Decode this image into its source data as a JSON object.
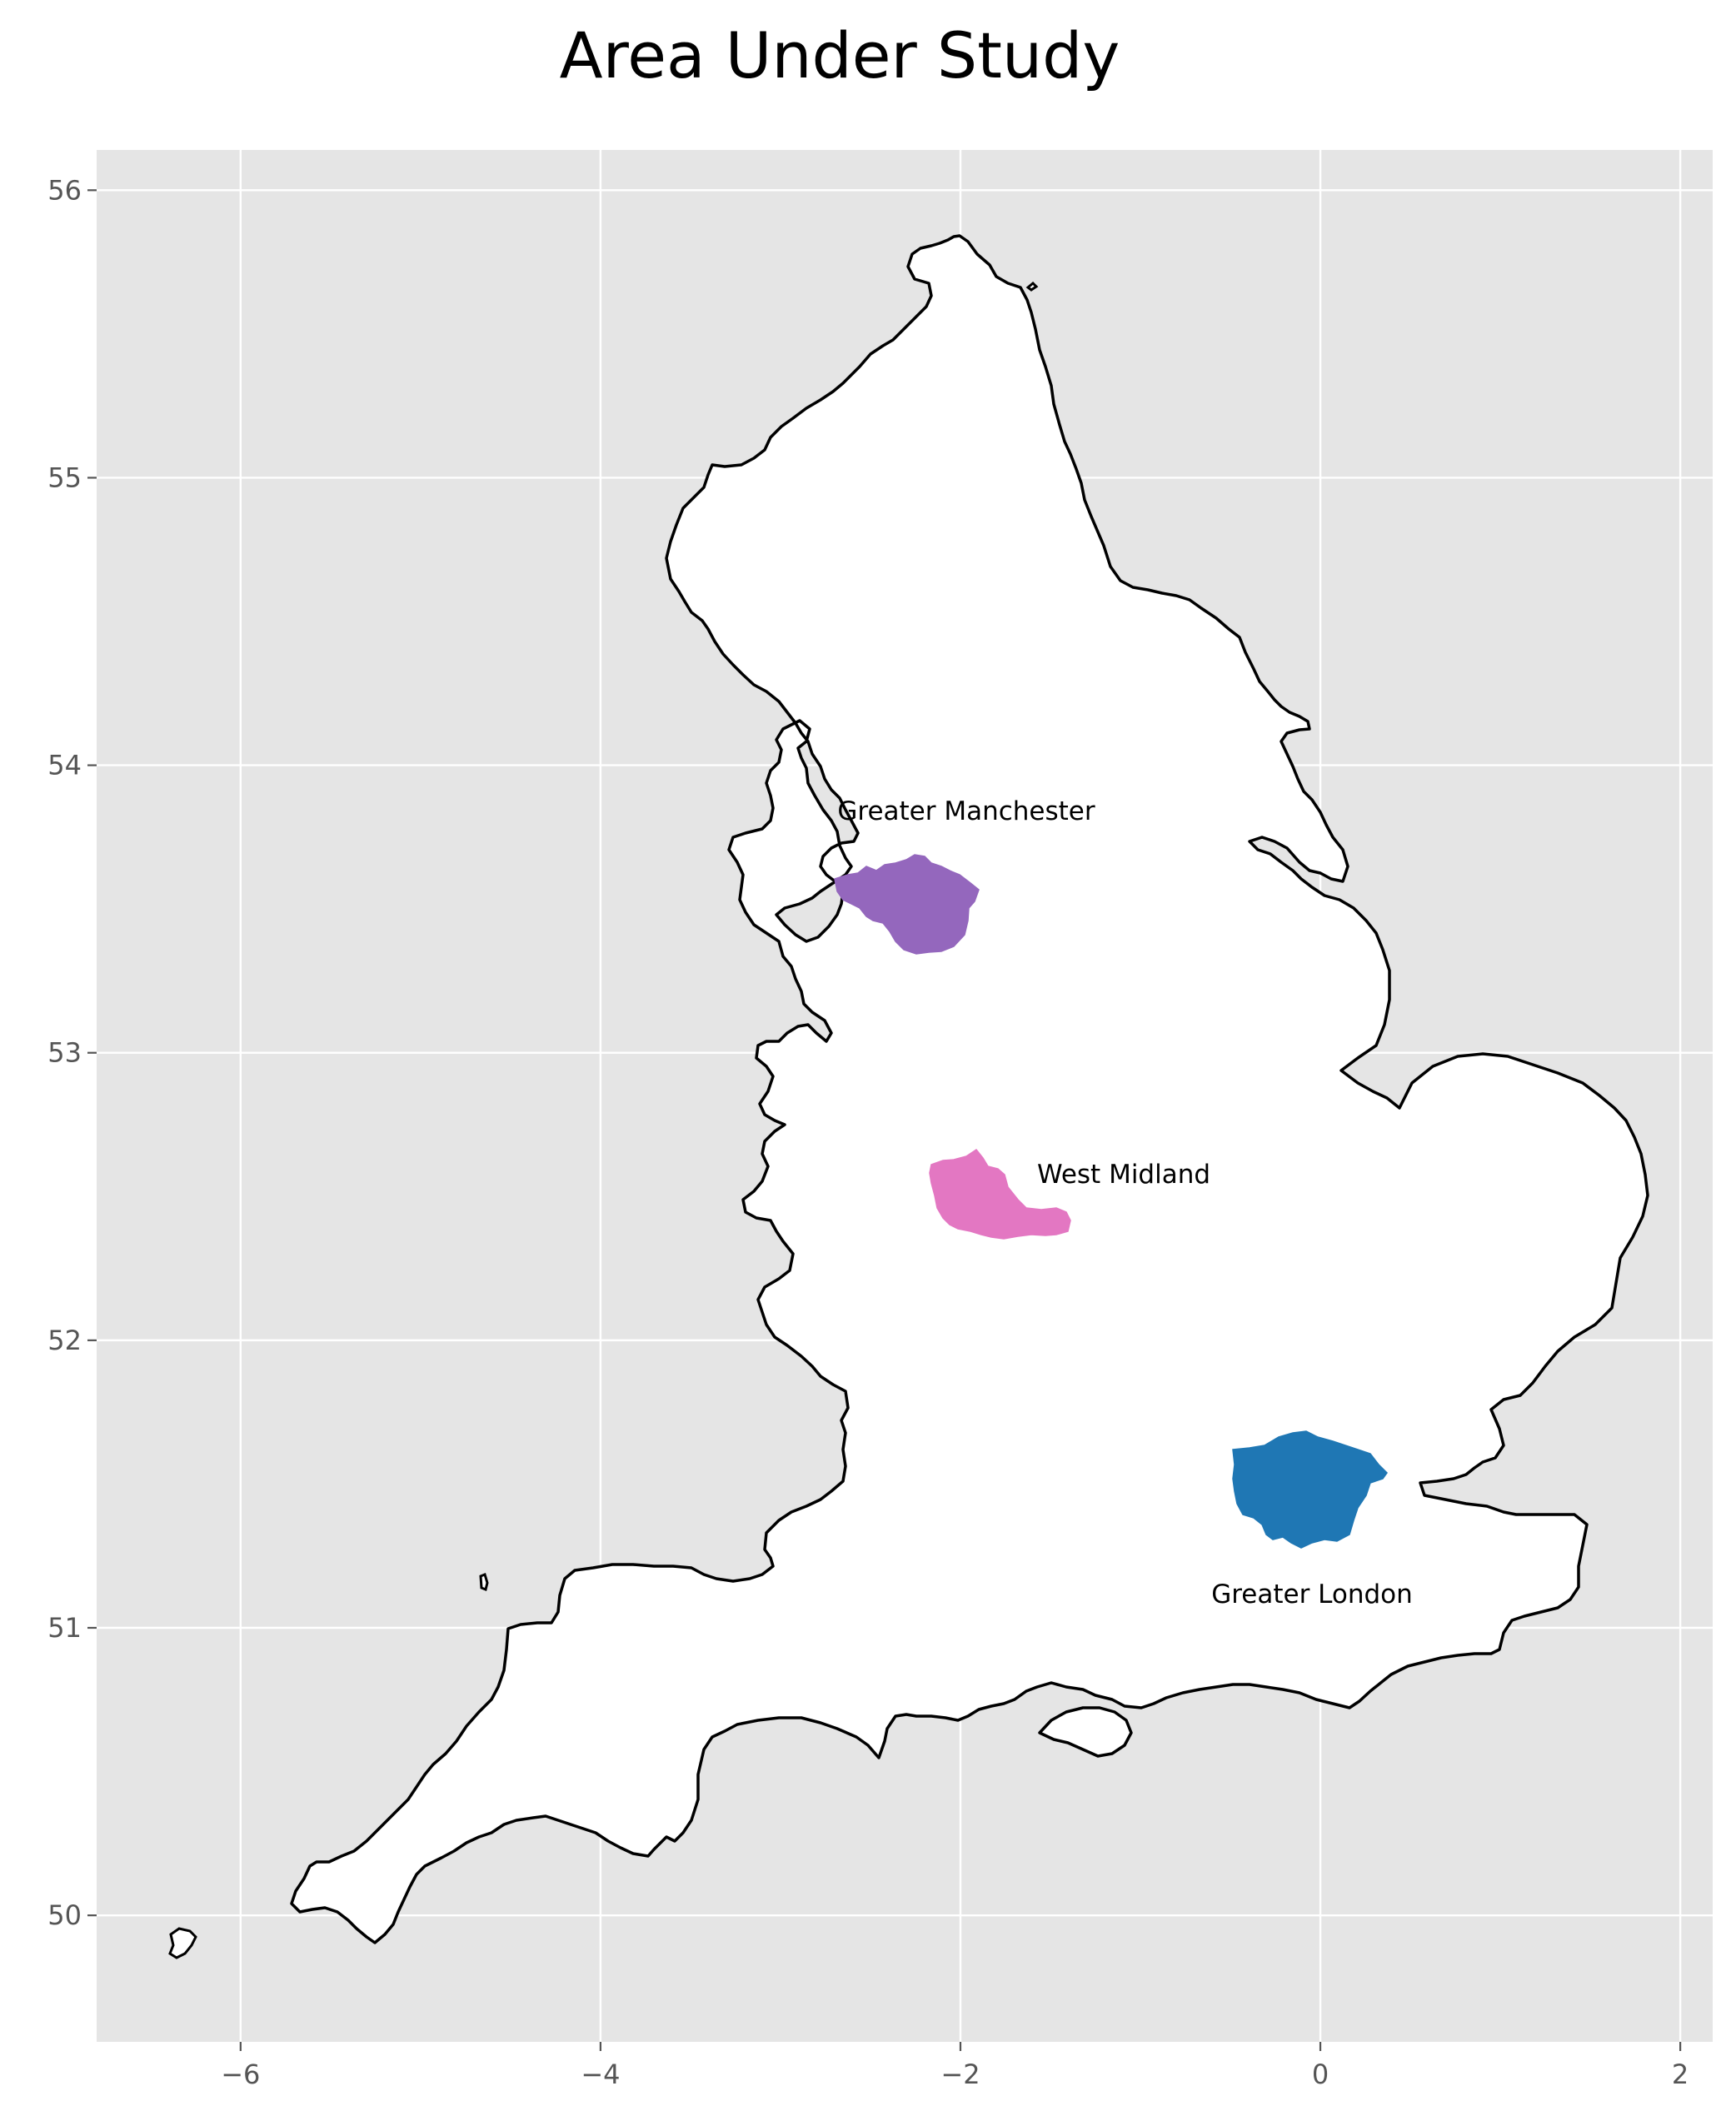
{
  "title": "Area Under Study",
  "axes": {
    "x_ticks": [
      {
        "value": -6,
        "label": "−6"
      },
      {
        "value": -4,
        "label": "−4"
      },
      {
        "value": -2,
        "label": "−2"
      },
      {
        "value": 0,
        "label": "0"
      },
      {
        "value": 2,
        "label": "2"
      }
    ],
    "y_ticks": [
      {
        "value": 50,
        "label": "50"
      },
      {
        "value": 51,
        "label": "51"
      },
      {
        "value": 52,
        "label": "52"
      },
      {
        "value": 53,
        "label": "53"
      },
      {
        "value": 54,
        "label": "54"
      },
      {
        "value": 55,
        "label": "55"
      },
      {
        "value": 56,
        "label": "56"
      }
    ],
    "xlim": [
      -6.8,
      2.18
    ],
    "ylim": [
      49.56,
      56.14
    ]
  },
  "colors": {
    "panel_background": "#e5e5e5",
    "grid": "#ffffff",
    "land": "#ffffff",
    "outline": "#000000",
    "greater_manchester": "#9467bd",
    "west_midland": "#e377c2",
    "greater_london": "#1f77b4"
  },
  "regions": [
    {
      "name": "Greater Manchester",
      "label": "Greater Manchester",
      "lon": -2.3,
      "lat": 53.5,
      "color": "#9467bd"
    },
    {
      "name": "West Midland",
      "label": "West Midland",
      "lon": -1.9,
      "lat": 52.5,
      "color": "#e377c2"
    },
    {
      "name": "Greater London",
      "label": "Greater London",
      "lon": -0.1,
      "lat": 51.5,
      "color": "#1f77b4"
    }
  ]
}
